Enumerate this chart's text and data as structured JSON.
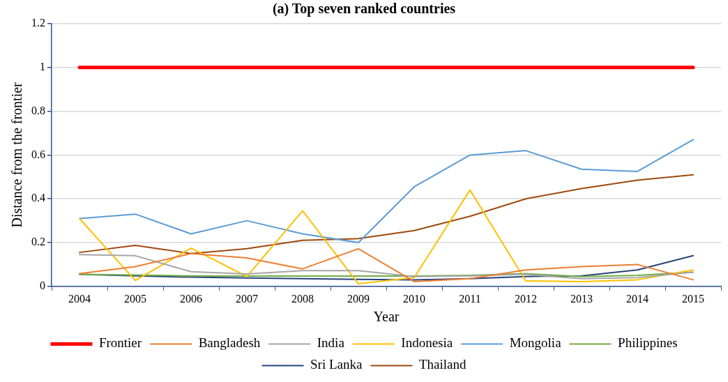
{
  "chart_data": {
    "type": "line",
    "title": "(a) Top seven ranked countries",
    "xlabel": "Year",
    "ylabel": "Distance from the frontier",
    "categories": [
      "2004",
      "2005",
      "2006",
      "2007",
      "2008",
      "2009",
      "2010",
      "2011",
      "2012",
      "2013",
      "2014",
      "2015"
    ],
    "ylim": [
      0,
      1.2
    ],
    "yticks": [
      0,
      0.2,
      0.4,
      0.6,
      0.8,
      1,
      1.2
    ],
    "grid": "y",
    "legend": "bottom",
    "marker": "none",
    "line_style": "solid",
    "series": [
      {
        "name": "Frontier",
        "color": "#ff0000",
        "values": [
          1,
          1,
          1,
          1,
          1,
          1,
          1,
          1,
          1,
          1,
          1,
          1
        ]
      },
      {
        "name": "Bangladesh",
        "color": "#ed7d31",
        "values": [
          0.058,
          0.09,
          0.15,
          0.13,
          0.08,
          0.172,
          0.022,
          0.035,
          0.075,
          0.09,
          0.1,
          0.03
        ]
      },
      {
        "name": "India",
        "color": "#a5a5a5",
        "values": [
          0.145,
          0.14,
          0.067,
          0.057,
          0.072,
          0.072,
          0.045,
          0.048,
          0.055,
          0.035,
          0.04,
          0.065
        ]
      },
      {
        "name": "Indonesia",
        "color": "#ffc000",
        "values": [
          0.31,
          0.027,
          0.175,
          0.045,
          0.345,
          0.012,
          0.04,
          0.44,
          0.025,
          0.022,
          0.03,
          0.075
        ]
      },
      {
        "name": "Mongolia",
        "color": "#5b9bd5",
        "values": [
          0.31,
          0.33,
          0.24,
          0.3,
          0.24,
          0.2,
          0.455,
          0.6,
          0.62,
          0.535,
          0.525,
          0.67
        ]
      },
      {
        "name": "Philippines",
        "color": "#70ad47",
        "values": [
          0.055,
          0.052,
          0.048,
          0.047,
          0.047,
          0.047,
          0.047,
          0.05,
          0.058,
          0.045,
          0.05,
          0.065
        ]
      },
      {
        "name": "Sri Lanka",
        "color": "#264478",
        "values": [
          0.055,
          0.048,
          0.042,
          0.038,
          0.035,
          0.032,
          0.03,
          0.035,
          0.045,
          0.048,
          0.075,
          0.14
        ]
      },
      {
        "name": "Thailand",
        "color": "#9e480e",
        "values": [
          0.155,
          0.187,
          0.15,
          0.172,
          0.21,
          0.218,
          0.255,
          0.32,
          0.4,
          0.447,
          0.485,
          0.51
        ]
      }
    ]
  }
}
